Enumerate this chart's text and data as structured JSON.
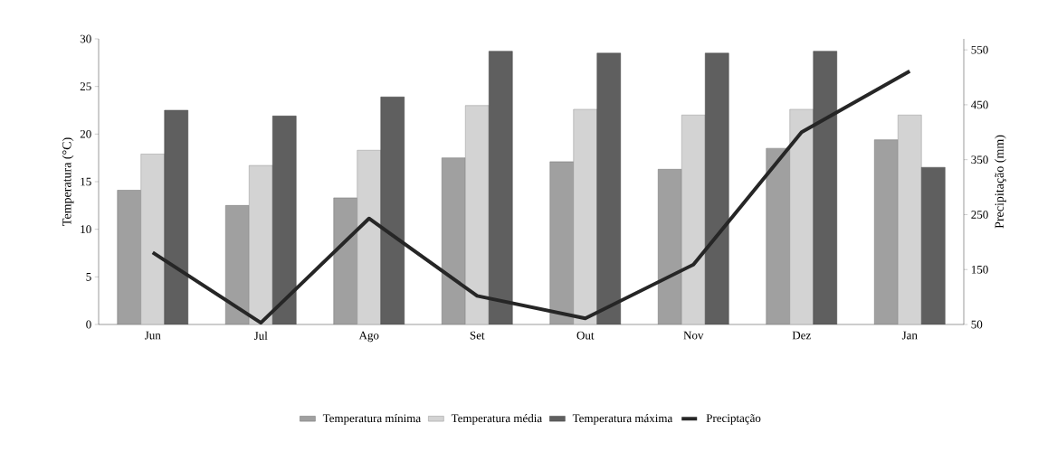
{
  "chart_data": {
    "type": "bar",
    "ylabel": "Temperatura (°C)",
    "y2label": "Precipitação (mm)",
    "categories": [
      "Jun",
      "Jul",
      "Ago",
      "Set",
      "Out",
      "Nov",
      "Dez",
      "Jan"
    ],
    "series": [
      {
        "name": "Temperatura mínima",
        "color": "#a0a0a0",
        "values": [
          14.1,
          12.5,
          13.3,
          17.5,
          17.1,
          16.3,
          18.5,
          19.4
        ]
      },
      {
        "name": "Temperatura média",
        "color": "#d3d3d3",
        "values": [
          17.9,
          16.7,
          18.3,
          23.0,
          22.6,
          22.0,
          22.6,
          22.0
        ]
      },
      {
        "name": "Temperatura máxima",
        "color": "#5f5f5f",
        "values": [
          22.5,
          21.9,
          23.9,
          28.7,
          28.5,
          28.5,
          28.7,
          16.5
        ]
      },
      {
        "name": "Preciptação",
        "type": "line",
        "axis": "y2",
        "color": "#262626",
        "line_style": "solid",
        "values": [
          181,
          53,
          243,
          102,
          61,
          159,
          400,
          511
        ]
      }
    ],
    "ylim": [
      0,
      30
    ],
    "yticks": [
      0,
      5,
      10,
      15,
      20,
      25,
      30
    ],
    "y2lim": [
      50,
      570
    ],
    "y2ticks": [
      50,
      150,
      250,
      350,
      450,
      550
    ],
    "grid": false,
    "legend": "bottom",
    "marker": "none"
  }
}
